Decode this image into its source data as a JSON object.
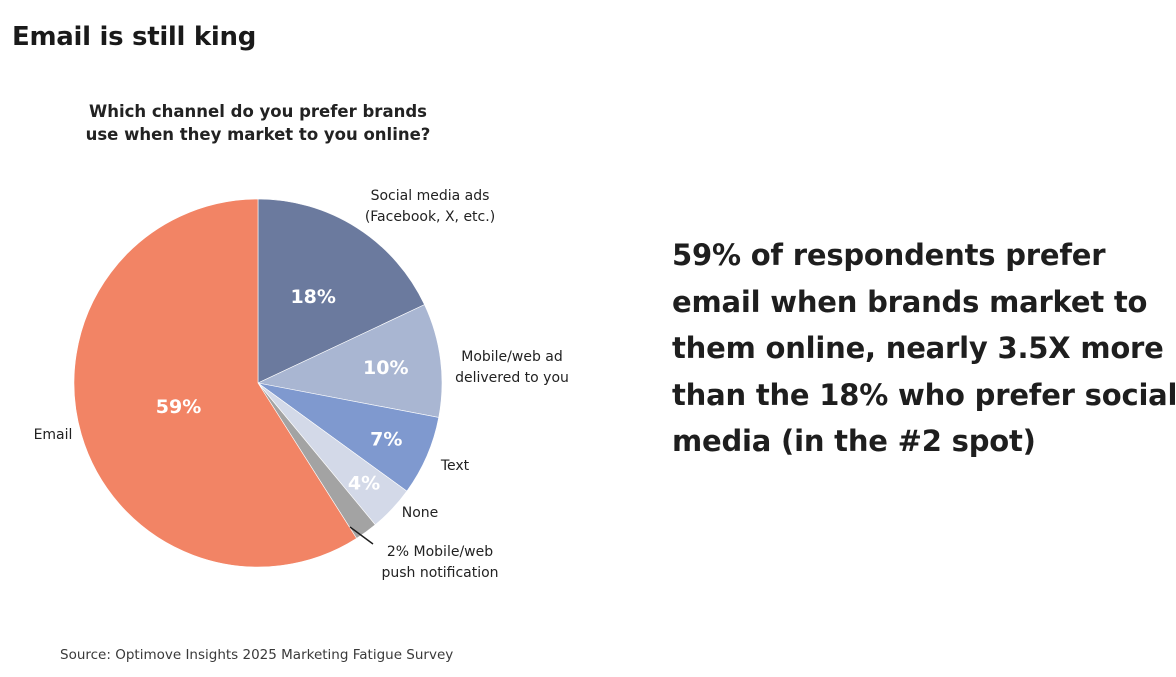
{
  "page": {
    "title": "Email is still king",
    "headline_lines": [
      "59% of respondents prefer",
      "email when brands market to",
      "them online, nearly 3.5X more",
      "than the 18% who prefer social",
      "media (in the #2 spot)"
    ],
    "source": "Source: Optimove Insights 2025 Marketing Fatigue Survey"
  },
  "chart_data": {
    "type": "pie",
    "title_lines": [
      "Which channel do you prefer brands",
      "use when they market to you online?"
    ],
    "slices": [
      {
        "key": "social",
        "label_lines": [
          "Social media ads",
          "(Facebook, X, etc.)"
        ],
        "value": 18,
        "value_label": "18%",
        "color": "#6b7a9e"
      },
      {
        "key": "mobile-web-ad",
        "label_lines": [
          "Mobile/web ad",
          "delivered to you"
        ],
        "value": 10,
        "value_label": "10%",
        "color": "#a9b6d2"
      },
      {
        "key": "text",
        "label_lines": [
          "Text"
        ],
        "value": 7,
        "value_label": "7%",
        "color": "#7f99cf"
      },
      {
        "key": "none",
        "label_lines": [
          "None"
        ],
        "value": 4,
        "value_label": "4%",
        "color": "#d3d9e8"
      },
      {
        "key": "push",
        "label_lines": [
          "2% Mobile/web",
          "push notification"
        ],
        "value": 2,
        "value_label": "",
        "color": "#a3a3a3"
      },
      {
        "key": "email",
        "label_lines": [
          "Email"
        ],
        "value": 59,
        "value_label": "59%",
        "color": "#f28465"
      }
    ],
    "start": "12 o'clock",
    "direction": "clockwise",
    "labels": "outside",
    "legend": "none"
  }
}
